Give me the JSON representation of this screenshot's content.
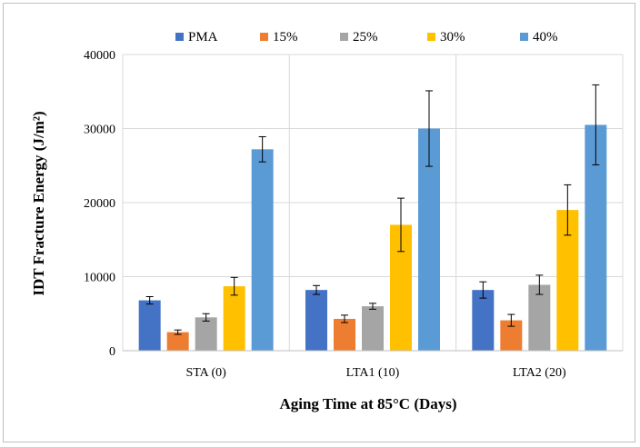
{
  "chart_data": {
    "type": "bar",
    "title": "",
    "xlabel": "Aging Time at 85°C (Days)",
    "ylabel": "IDT Fracture Energy (J/m²)",
    "categories": [
      "STA (0)",
      "LTA1 (10)",
      "LTA2 (20)"
    ],
    "ylim": [
      0,
      40000
    ],
    "yticks": [
      0,
      10000,
      20000,
      30000,
      40000
    ],
    "grid": true,
    "legend_position": "top",
    "series": [
      {
        "name": "PMA",
        "color": "#4472c4",
        "values": [
          6800,
          8200,
          8200
        ],
        "errors": [
          500,
          600,
          1100
        ]
      },
      {
        "name": "15%",
        "color": "#ed7d31",
        "values": [
          2500,
          4300,
          4100
        ],
        "errors": [
          300,
          500,
          800
        ]
      },
      {
        "name": "25%",
        "color": "#a5a5a5",
        "values": [
          4500,
          6000,
          8900
        ],
        "errors": [
          500,
          400,
          1300
        ]
      },
      {
        "name": "30%",
        "color": "#ffc000",
        "values": [
          8700,
          17000,
          19000
        ],
        "errors": [
          1200,
          3600,
          3400
        ]
      },
      {
        "name": "40%",
        "color": "#5b9bd5",
        "values": [
          27200,
          30000,
          30500
        ],
        "errors": [
          1700,
          5100,
          5400
        ]
      }
    ]
  }
}
